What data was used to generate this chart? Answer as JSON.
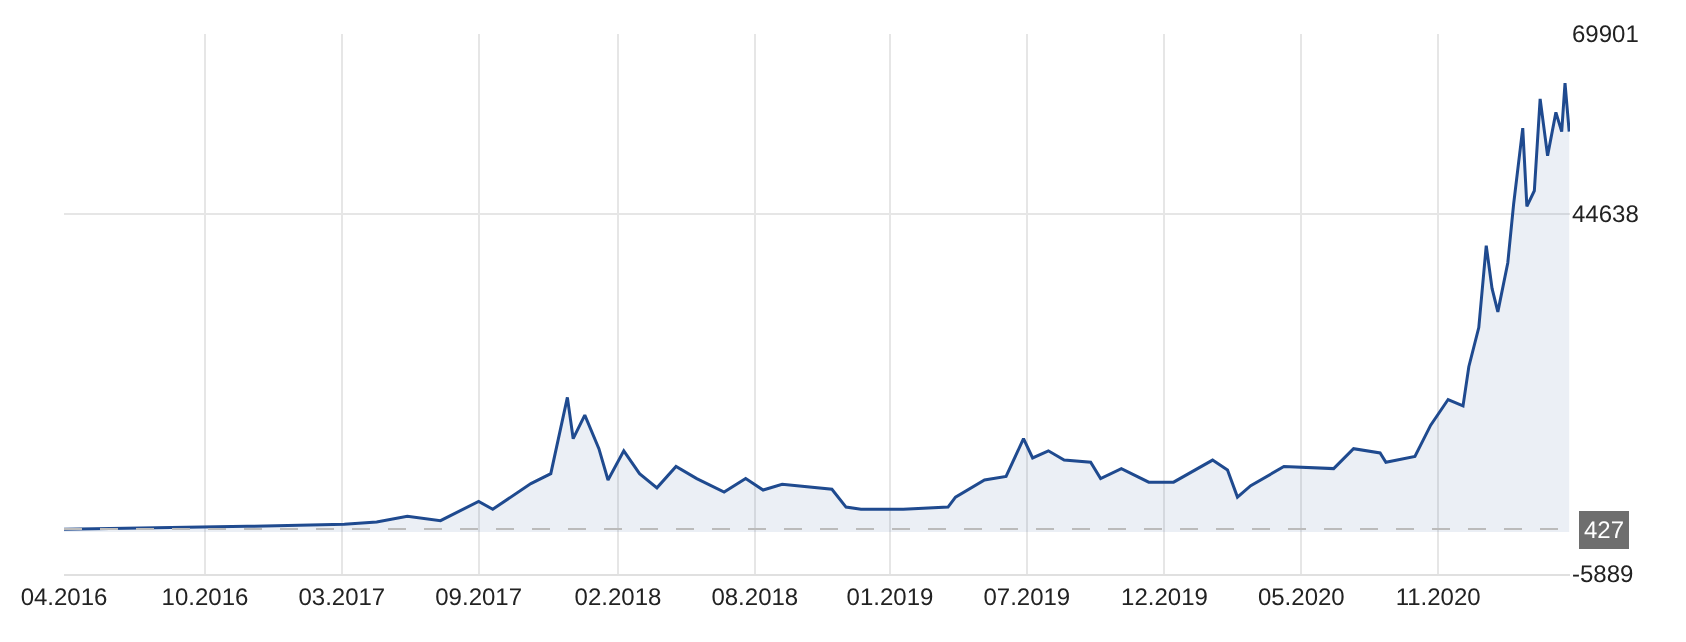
{
  "chart_data": {
    "type": "area",
    "color": "#1f4a8f",
    "x": [
      "2016-04-28",
      "2016-12-05",
      "2017-04-01",
      "2017-05-10",
      "2017-06-16",
      "2017-07-26",
      "2017-09-10",
      "2017-09-27",
      "2017-11-12",
      "2017-12-06",
      "2017-12-26",
      "2018-01-02",
      "2018-01-16",
      "2018-02-02",
      "2018-02-13",
      "2018-03-04",
      "2018-03-23",
      "2018-04-13",
      "2018-05-06",
      "2018-05-31",
      "2018-07-03",
      "2018-07-29",
      "2018-08-19",
      "2018-09-11",
      "2018-11-10",
      "2018-11-27",
      "2018-12-15",
      "2019-02-04",
      "2019-03-30",
      "2019-04-08",
      "2019-05-13",
      "2019-06-08",
      "2019-06-29",
      "2019-07-10",
      "2019-07-29",
      "2019-08-17",
      "2019-09-18",
      "2019-09-30",
      "2019-10-25",
      "2019-11-27",
      "2019-12-27",
      "2020-02-12",
      "2020-03-01",
      "2020-03-13",
      "2020-03-29",
      "2020-05-08",
      "2020-07-07",
      "2020-07-31",
      "2020-09-01",
      "2020-09-08",
      "2020-10-13",
      "2020-11-01",
      "2020-11-22",
      "2020-12-10",
      "2020-12-17",
      "2020-12-29",
      "2021-01-07",
      "2021-01-14",
      "2021-01-21",
      "2021-02-02",
      "2021-02-09",
      "2021-02-20",
      "2021-02-25",
      "2021-03-06",
      "2021-03-13",
      "2021-03-22",
      "2021-04-01",
      "2021-04-08",
      "2021-04-12",
      "2021-04-17"
    ],
    "values": [
      400,
      800,
      1100,
      1400,
      2200,
      1600,
      4300,
      3200,
      6800,
      8200,
      18900,
      13100,
      16400,
      11700,
      7300,
      11400,
      8200,
      6200,
      9200,
      7500,
      5600,
      7500,
      5900,
      6700,
      6000,
      3500,
      3200,
      3200,
      3500,
      4900,
      7300,
      7800,
      13100,
      10400,
      11400,
      10100,
      9800,
      7500,
      8900,
      7000,
      7000,
      10100,
      8700,
      4900,
      6500,
      9200,
      8900,
      11700,
      11100,
      9800,
      10600,
      15000,
      18600,
      17700,
      23200,
      28700,
      40200,
      34200,
      30900,
      37800,
      46000,
      56700,
      45700,
      47900,
      60800,
      52800,
      58900,
      56200,
      63000,
      56200
    ],
    "xlim": [
      "2016-04-28",
      "2021-04-18"
    ],
    "xticks": [
      {
        "value": "2016-04-28",
        "label": "04.2016"
      },
      {
        "value": "2016-10-15",
        "label": "10.2016"
      },
      {
        "value": "2017-03-29",
        "label": "03.2017"
      },
      {
        "value": "2017-09-10",
        "label": "09.2017"
      },
      {
        "value": "2018-02-25",
        "label": "02.2018"
      },
      {
        "value": "2018-08-09",
        "label": "08.2018"
      },
      {
        "value": "2019-01-19",
        "label": "01.2019"
      },
      {
        "value": "2019-07-03",
        "label": "07.2019"
      },
      {
        "value": "2019-12-16",
        "label": "12.2019"
      },
      {
        "value": "2020-05-29",
        "label": "05.2020"
      },
      {
        "value": "2020-11-10",
        "label": "11.2020"
      }
    ],
    "ylim": [
      -5889,
      69901
    ],
    "yticks": [
      -5889,
      44638,
      69901
    ],
    "ref_lines": [
      {
        "axis": "y",
        "value": 427,
        "label": "427",
        "color": "#bbbbbb",
        "line_style": "dashed"
      }
    ],
    "grid": true,
    "legend": false,
    "marker": "none",
    "line_style": "solid"
  }
}
